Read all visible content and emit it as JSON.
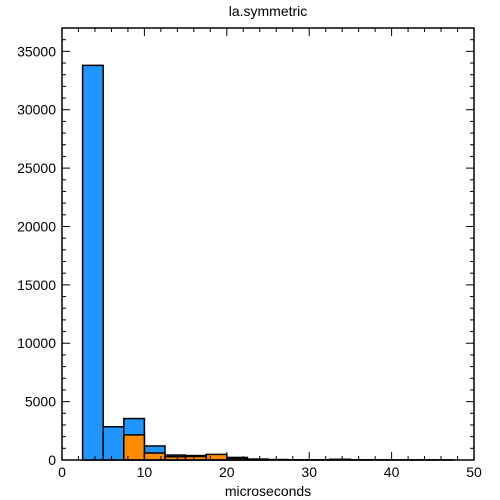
{
  "chart_data": {
    "type": "bar",
    "title": "la.symmetric",
    "xlabel": "microseconds",
    "ylabel": "",
    "xlim": [
      0,
      50
    ],
    "ylim": [
      0,
      37000
    ],
    "xticks": [
      0,
      10,
      20,
      30,
      40,
      50
    ],
    "yticks": [
      0,
      5000,
      10000,
      15000,
      20000,
      25000,
      30000,
      35000
    ],
    "bin_width": 2.5,
    "series": [
      {
        "name": "blue",
        "color": "#1f96fe",
        "bins": [
          {
            "x0": 2.5,
            "value": 33800
          },
          {
            "x0": 5.0,
            "value": 2850
          },
          {
            "x0": 7.5,
            "value": 3550
          },
          {
            "x0": 10.0,
            "value": 1200
          },
          {
            "x0": 12.5,
            "value": 420
          },
          {
            "x0": 15.0,
            "value": 380
          },
          {
            "x0": 17.5,
            "value": 330
          },
          {
            "x0": 20.0,
            "value": 220
          },
          {
            "x0": 22.5,
            "value": 80
          },
          {
            "x0": 25.0,
            "value": 40
          },
          {
            "x0": 27.5,
            "value": 20
          },
          {
            "x0": 30.0,
            "value": 20
          },
          {
            "x0": 32.5,
            "value": 60
          },
          {
            "x0": 35.0,
            "value": 20
          },
          {
            "x0": 37.5,
            "value": 10
          },
          {
            "x0": 40.0,
            "value": 10
          },
          {
            "x0": 42.5,
            "value": 10
          },
          {
            "x0": 45.0,
            "value": 10
          }
        ]
      },
      {
        "name": "orange",
        "color": "#ff8c00",
        "bins": [
          {
            "x0": 7.5,
            "value": 2150
          },
          {
            "x0": 10.0,
            "value": 600
          },
          {
            "x0": 12.5,
            "value": 280
          },
          {
            "x0": 15.0,
            "value": 300
          },
          {
            "x0": 17.5,
            "value": 480
          },
          {
            "x0": 20.0,
            "value": 150
          },
          {
            "x0": 22.5,
            "value": 40
          }
        ]
      }
    ]
  }
}
